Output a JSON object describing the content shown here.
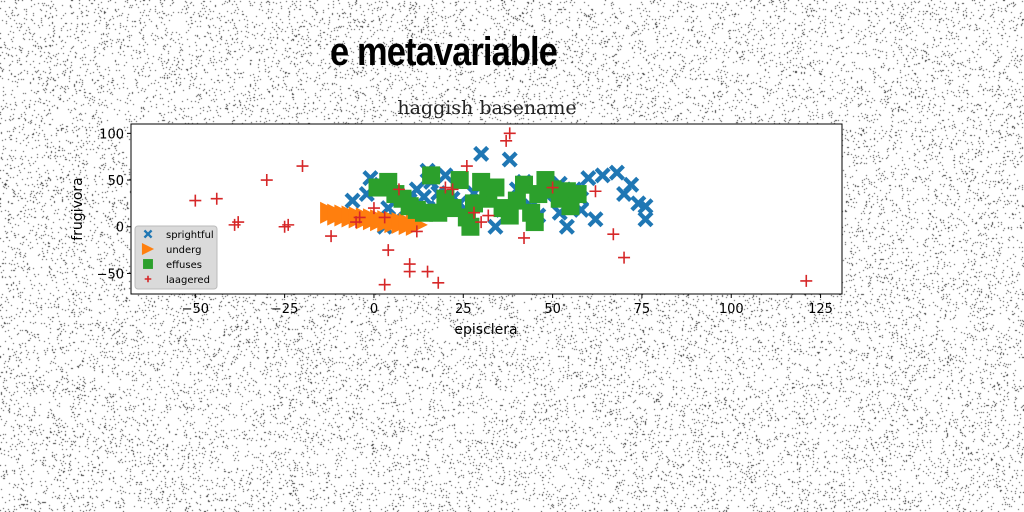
{
  "header": {
    "title": "e metavariable"
  },
  "colors": {
    "sprightful": "#1f77b4",
    "underg": "#ff7f0e",
    "effuses": "#2ca02c",
    "laagered": "#d62728"
  },
  "chart_data": {
    "type": "scatter",
    "title": "haggish basename",
    "xlabel": "episclera",
    "ylabel": "frugivora",
    "xlim": [
      -68,
      131
    ],
    "ylim": [
      -72,
      110
    ],
    "xticks": [
      -50,
      -25,
      0,
      25,
      50,
      75,
      100,
      125
    ],
    "yticks": [
      -50,
      0,
      50,
      100
    ],
    "legend_position": "lower-left",
    "series": [
      {
        "name": "sprightful",
        "marker": "x-filled",
        "points": [
          [
            -6,
            28
          ],
          [
            -2,
            35
          ],
          [
            -1,
            52
          ],
          [
            2,
            45
          ],
          [
            4,
            20
          ],
          [
            6,
            8
          ],
          [
            10,
            28
          ],
          [
            12,
            40
          ],
          [
            14,
            32
          ],
          [
            15,
            60
          ],
          [
            15,
            20
          ],
          [
            16,
            48
          ],
          [
            18,
            36
          ],
          [
            20,
            55
          ],
          [
            22,
            30
          ],
          [
            24,
            25
          ],
          [
            26,
            16
          ],
          [
            28,
            36
          ],
          [
            30,
            78
          ],
          [
            32,
            42
          ],
          [
            34,
            0
          ],
          [
            36,
            18
          ],
          [
            38,
            72
          ],
          [
            40,
            40
          ],
          [
            42,
            48
          ],
          [
            44,
            22
          ],
          [
            46,
            12
          ],
          [
            52,
            46
          ],
          [
            52,
            15
          ],
          [
            54,
            0
          ],
          [
            56,
            40
          ],
          [
            58,
            30
          ],
          [
            60,
            52
          ],
          [
            62,
            8
          ],
          [
            64,
            55
          ],
          [
            68,
            58
          ],
          [
            70,
            35
          ],
          [
            72,
            45
          ],
          [
            74,
            25
          ],
          [
            76,
            22
          ],
          [
            76,
            8
          ],
          [
            58,
            18
          ],
          [
            48,
            35
          ],
          [
            3,
            0
          ]
        ]
      },
      {
        "name": "underg",
        "marker": "triangle-right",
        "points": [
          [
            -12,
            15
          ],
          [
            -10,
            13
          ],
          [
            -8,
            12
          ],
          [
            -6,
            11
          ],
          [
            -4,
            10
          ],
          [
            -2,
            9
          ],
          [
            0,
            8
          ],
          [
            2,
            7
          ],
          [
            4,
            6
          ],
          [
            6,
            5
          ],
          [
            8,
            4
          ],
          [
            10,
            3
          ],
          [
            12,
            2
          ]
        ]
      },
      {
        "name": "effuses",
        "marker": "square",
        "points": [
          [
            1,
            42
          ],
          [
            4,
            48
          ],
          [
            6,
            35
          ],
          [
            8,
            30
          ],
          [
            10,
            22
          ],
          [
            12,
            18
          ],
          [
            14,
            15
          ],
          [
            16,
            55
          ],
          [
            18,
            15
          ],
          [
            20,
            30
          ],
          [
            22,
            20
          ],
          [
            24,
            50
          ],
          [
            26,
            10
          ],
          [
            28,
            25
          ],
          [
            30,
            48
          ],
          [
            32,
            30
          ],
          [
            34,
            42
          ],
          [
            36,
            20
          ],
          [
            38,
            12
          ],
          [
            40,
            28
          ],
          [
            42,
            45
          ],
          [
            44,
            15
          ],
          [
            46,
            35
          ],
          [
            48,
            50
          ],
          [
            50,
            40
          ],
          [
            52,
            30
          ],
          [
            54,
            38
          ],
          [
            55,
            22
          ],
          [
            57,
            35
          ],
          [
            27,
            0
          ],
          [
            45,
            5
          ]
        ]
      },
      {
        "name": "laagered",
        "marker": "plus",
        "points": [
          [
            -50,
            28
          ],
          [
            -44,
            30
          ],
          [
            -39,
            2
          ],
          [
            -38,
            5
          ],
          [
            -30,
            50
          ],
          [
            -25,
            0
          ],
          [
            -24,
            2
          ],
          [
            -20,
            65
          ],
          [
            -12,
            -10
          ],
          [
            -5,
            5
          ],
          [
            -4,
            10
          ],
          [
            0,
            20
          ],
          [
            3,
            10
          ],
          [
            3,
            -62
          ],
          [
            4,
            -25
          ],
          [
            7,
            40
          ],
          [
            10,
            -40
          ],
          [
            10,
            -48
          ],
          [
            12,
            -5
          ],
          [
            15,
            -48
          ],
          [
            18,
            -60
          ],
          [
            20,
            42
          ],
          [
            22,
            40
          ],
          [
            26,
            65
          ],
          [
            28,
            15
          ],
          [
            30,
            5
          ],
          [
            32,
            12
          ],
          [
            37,
            92
          ],
          [
            38,
            100
          ],
          [
            42,
            -12
          ],
          [
            50,
            42
          ],
          [
            62,
            38
          ],
          [
            67,
            -8
          ],
          [
            70,
            -33
          ],
          [
            121,
            -58
          ]
        ]
      }
    ]
  }
}
